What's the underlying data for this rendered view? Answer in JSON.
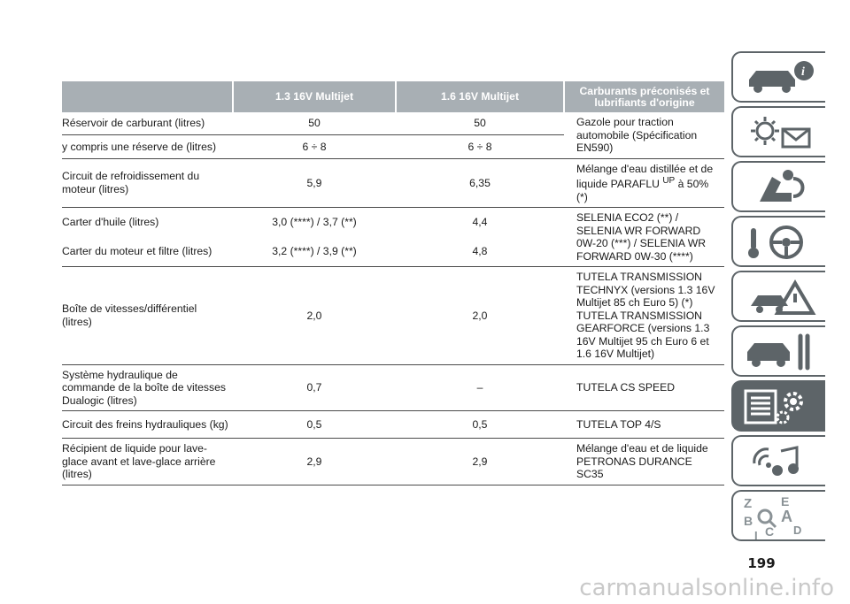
{
  "table": {
    "headers": [
      "",
      "1.3 16V Multijet",
      "1.6 16V Multijet",
      "Carburants préconisés et lubrifiants d'origine"
    ],
    "rows": [
      {
        "label": "Réservoir de carburant (litres)",
        "v1": "50",
        "v2": "50"
      },
      {
        "label": "y compris une réserve de (litres)",
        "v1": "6 ÷ 8",
        "v2": "6 ÷ 8"
      },
      {
        "label": "Circuit de refroidissement du moteur (litres)",
        "v1": "5,9",
        "v2": "6,35"
      },
      {
        "label": "Carter d'huile (litres)",
        "v1": "3,0 (****) / 3,7 (**)",
        "v2": "4,4"
      },
      {
        "label": "Carter du moteur et filtre (litres)",
        "v1": "3,2 (****) / 3,9 (**)",
        "v2": "4,8"
      },
      {
        "label": "Boîte de vitesses/différentiel (litres)",
        "v1": "2,0",
        "v2": "2,0"
      },
      {
        "label": "Système hydraulique de commande de la boîte de vitesses Dualogic (litres)",
        "v1": "0,7",
        "v2": "–"
      },
      {
        "label": "Circuit des freins hydrauliques (kg)",
        "v1": "0,5",
        "v2": "0,5"
      },
      {
        "label": "Récipient de liquide pour lave-glace avant et lave-glace arrière (litres)",
        "v1": "2,9",
        "v2": "2,9"
      }
    ],
    "fluids": {
      "fuel": "Gazole pour traction automobile (Spécification EN590)",
      "coolant_pre": "Mélange d'eau distillée et de liquide PARAFLU",
      "coolant_sup": "UP",
      "coolant_post": " à 50% (*)",
      "oil": "SELENIA ECO2 (**) / SELENIA WR FORWARD 0W-20 (***) / SELENIA WR FORWARD 0W-30 (****)",
      "gearbox": "TUTELA TRANSMISSION TECHNYX (versions 1.3 16V Multijet 85 ch Euro 5) (*) TUTELA TRANSMISSION GEARFORCE (versions 1.3 16V Multijet 95 ch Euro 6 et 1.6 16V Multijet)",
      "dualogic": "TUTELA CS SPEED",
      "brakes": "TUTELA TOP 4/S",
      "washer": "Mélange d'eau et de liquide PETRONAS DURANCE SC35"
    }
  },
  "sidebar": {
    "tabs": [
      {
        "icon": "car-info-icon"
      },
      {
        "icon": "dashboard-lights-icon"
      },
      {
        "icon": "airbag-safety-icon"
      },
      {
        "icon": "steering-wheel-key-icon"
      },
      {
        "icon": "warning-triangle-car-icon"
      },
      {
        "icon": "car-service-wrench-icon"
      },
      {
        "icon": "technical-data-list-gear-icon"
      },
      {
        "icon": "multimedia-icon"
      },
      {
        "icon": "index-letters-icon"
      }
    ],
    "active_index": 6
  },
  "page_number": "199",
  "watermark": "carmanualsonline.info",
  "colors": {
    "header_bg": "#a8afb4",
    "tab_border": "#5d6468",
    "active_tab": "#5d6468"
  }
}
